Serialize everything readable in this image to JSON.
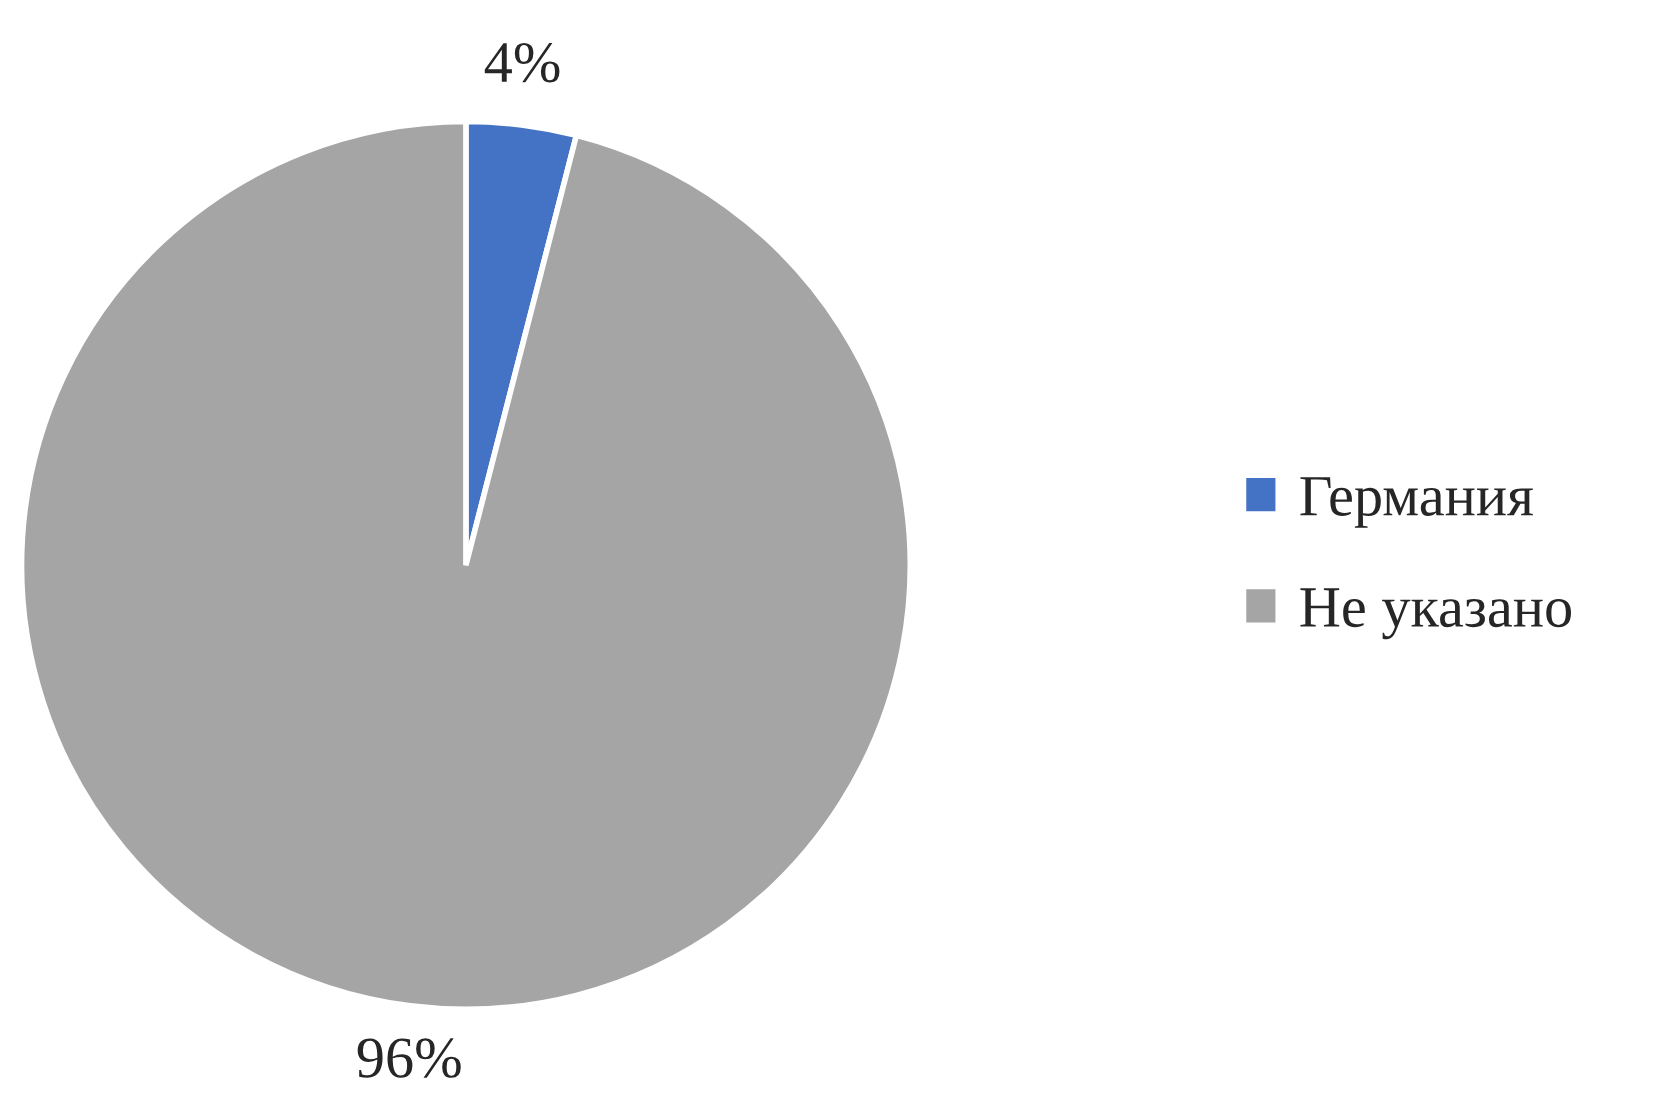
{
  "chart_data": {
    "type": "pie",
    "categories": [
      "Германия",
      "Не указано"
    ],
    "values": [
      4,
      96
    ],
    "colors": [
      "#4472c4",
      "#a5a5a5"
    ],
    "value_labels": [
      "4%",
      "96%"
    ],
    "legend": "right"
  }
}
